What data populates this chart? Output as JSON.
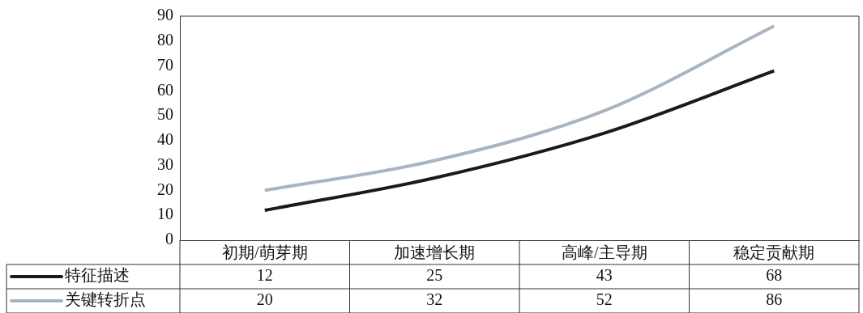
{
  "chart_data": {
    "type": "line",
    "categories": [
      "初期/萌芽期",
      "加速增长期",
      "高峰/主导期",
      "稳定贡献期"
    ],
    "series": [
      {
        "name": "特征描述",
        "color": "#1a1a1a",
        "values": [
          12,
          25,
          43,
          68
        ]
      },
      {
        "name": "关键转折点",
        "color": "#a9b4c2",
        "values": [
          20,
          32,
          52,
          86
        ]
      }
    ],
    "ylim": [
      0,
      90
    ],
    "yticks": [
      0,
      10,
      20,
      30,
      40,
      50,
      60,
      70,
      80,
      90
    ],
    "grid": false,
    "legend": "bottom left",
    "marker": "none",
    "line_style": "solid",
    "data_labels": true
  }
}
